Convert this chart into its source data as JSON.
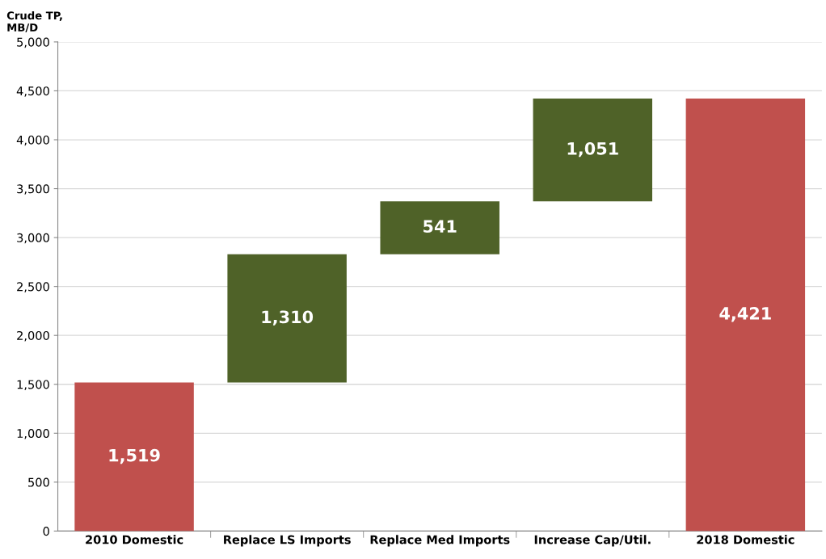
{
  "chart_data": {
    "type": "bar",
    "ylabel": "Crude TP,\nMB/D",
    "categories": [
      "2010 Domestic",
      "Replace LS Imports",
      "Replace Med Imports",
      "Increase Cap/Util.",
      "2018 Domestic"
    ],
    "values": [
      1519,
      1310,
      541,
      1051,
      4421
    ],
    "base": [
      0,
      1519,
      2829,
      3370,
      0
    ],
    "colors": [
      "#c0504d",
      "#4f6228",
      "#4f6228",
      "#4f6228",
      "#c0504d"
    ],
    "value_labels": [
      "1,519",
      "1,310",
      "541",
      "1,051",
      "4,421"
    ],
    "ylim": [
      0,
      5000
    ],
    "yticks": [
      0,
      {
        "value": 500,
        "label": "500"
      },
      {
        "value": 1000,
        "label": "1,000"
      },
      {
        "value": 1500,
        "label": "1,500"
      },
      {
        "value": 2000,
        "label": "2,000"
      },
      {
        "value": 2500,
        "label": "2,500"
      },
      {
        "value": 3000,
        "label": "3,000"
      },
      {
        "value": 3500,
        "label": "3,500"
      },
      {
        "value": 4000,
        "label": "4,000"
      },
      {
        "value": 4500,
        "label": "4,500"
      },
      {
        "value": 5000,
        "label": "5,000"
      }
    ],
    "grid": "y"
  }
}
